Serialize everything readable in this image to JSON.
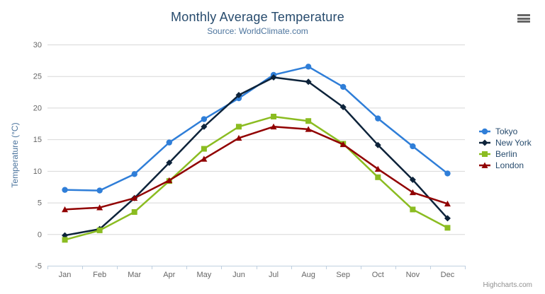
{
  "chart_data": {
    "type": "line",
    "title": "Monthly Average Temperature",
    "subtitle": "Source: WorldClimate.com",
    "categories": [
      "Jan",
      "Feb",
      "Mar",
      "Apr",
      "May",
      "Jun",
      "Jul",
      "Aug",
      "Sep",
      "Oct",
      "Nov",
      "Dec"
    ],
    "xlabel": "",
    "ylabel": "Temperature (°C)",
    "ylim": [
      -5,
      30
    ],
    "y_tick_interval": 5,
    "grid": true,
    "legend_position": "right-middle",
    "series": [
      {
        "name": "Tokyo",
        "color": "#2f7ed8",
        "marker": "circle",
        "values": [
          7.0,
          6.9,
          9.5,
          14.5,
          18.2,
          21.5,
          25.2,
          26.5,
          23.3,
          18.3,
          13.9,
          9.6
        ]
      },
      {
        "name": "New York",
        "color": "#0d233a",
        "marker": "diamond",
        "values": [
          -0.2,
          0.8,
          5.7,
          11.3,
          17.0,
          22.0,
          24.8,
          24.1,
          20.1,
          14.1,
          8.6,
          2.5
        ]
      },
      {
        "name": "Berlin",
        "color": "#8bbc21",
        "marker": "square",
        "values": [
          -0.9,
          0.6,
          3.5,
          8.4,
          13.5,
          17.0,
          18.6,
          17.9,
          14.3,
          9.0,
          3.9,
          1.0
        ]
      },
      {
        "name": "London",
        "color": "#910000",
        "marker": "triangle",
        "values": [
          3.9,
          4.2,
          5.7,
          8.5,
          11.9,
          15.2,
          17.0,
          16.6,
          14.2,
          10.3,
          6.6,
          4.8
        ]
      }
    ],
    "style_colors": {
      "title": "#274b6d",
      "subtitle": "#4d759e",
      "axis_title": "#4d759e",
      "tick_labels": "#666666",
      "gridline": "#d8d8d8",
      "axis_line": "#c0d0e0"
    }
  },
  "context_menu": {
    "icon": "hamburger-icon"
  },
  "credits": {
    "label": "Highcharts.com"
  }
}
